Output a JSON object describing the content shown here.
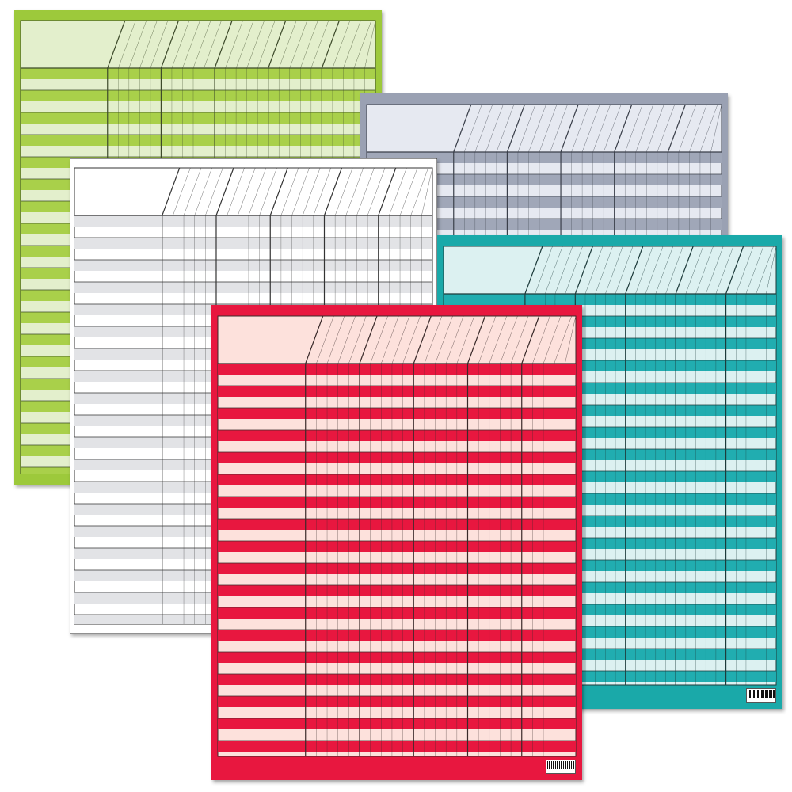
{
  "charts": [
    {
      "id": "green",
      "name": "green-incentive-chart",
      "frame": "#9dc93b",
      "light": "#e3efcc",
      "stripe": "#a9d04a",
      "line": "#3d4a2a",
      "barcode": false
    },
    {
      "id": "gray",
      "name": "gray-incentive-chart",
      "frame": "#9aa1b3",
      "light": "#e6e9f1",
      "stripe": "#a0a7b8",
      "line": "#3a3f4a",
      "barcode": false
    },
    {
      "id": "white",
      "name": "white-incentive-chart",
      "frame": "#ffffff",
      "light": "#ffffff",
      "stripe": "#e2e3e6",
      "line": "#333333",
      "barcode": false
    },
    {
      "id": "teal",
      "name": "teal-incentive-chart",
      "frame": "#1aa9a9",
      "light": "#dcf1f1",
      "stripe": "#21adb0",
      "line": "#1d3b3b",
      "barcode": true
    },
    {
      "id": "red",
      "name": "red-incentive-chart",
      "frame": "#e8173f",
      "light": "#fde1dc",
      "stripe": "#e8173f",
      "line": "#3a2a2a",
      "barcode": true
    }
  ]
}
